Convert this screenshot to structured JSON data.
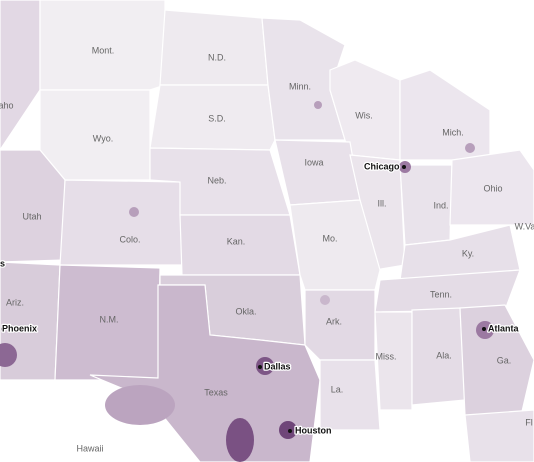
{
  "states": [
    "aho",
    "Mont.",
    "N.D.",
    "Minn.",
    "Wyo.",
    "S.D.",
    "Wis.",
    "Mich.",
    "Iowa",
    "Neb.",
    "Utah",
    "Ill.",
    "Ind.",
    "Ohio",
    "Colo.",
    "Kan.",
    "Mo.",
    "W.Va",
    "Ky.",
    "Ariz.",
    "N.M.",
    "Okla.",
    "Tenn.",
    "Ark.",
    "Miss.",
    "Ala.",
    "Ga.",
    "Texas",
    "La.",
    "Fl",
    "Hawaii"
  ],
  "cities": [
    "Chicago",
    "s",
    "Phoenix",
    "Dallas",
    "Atlanta",
    "Houston"
  ]
}
